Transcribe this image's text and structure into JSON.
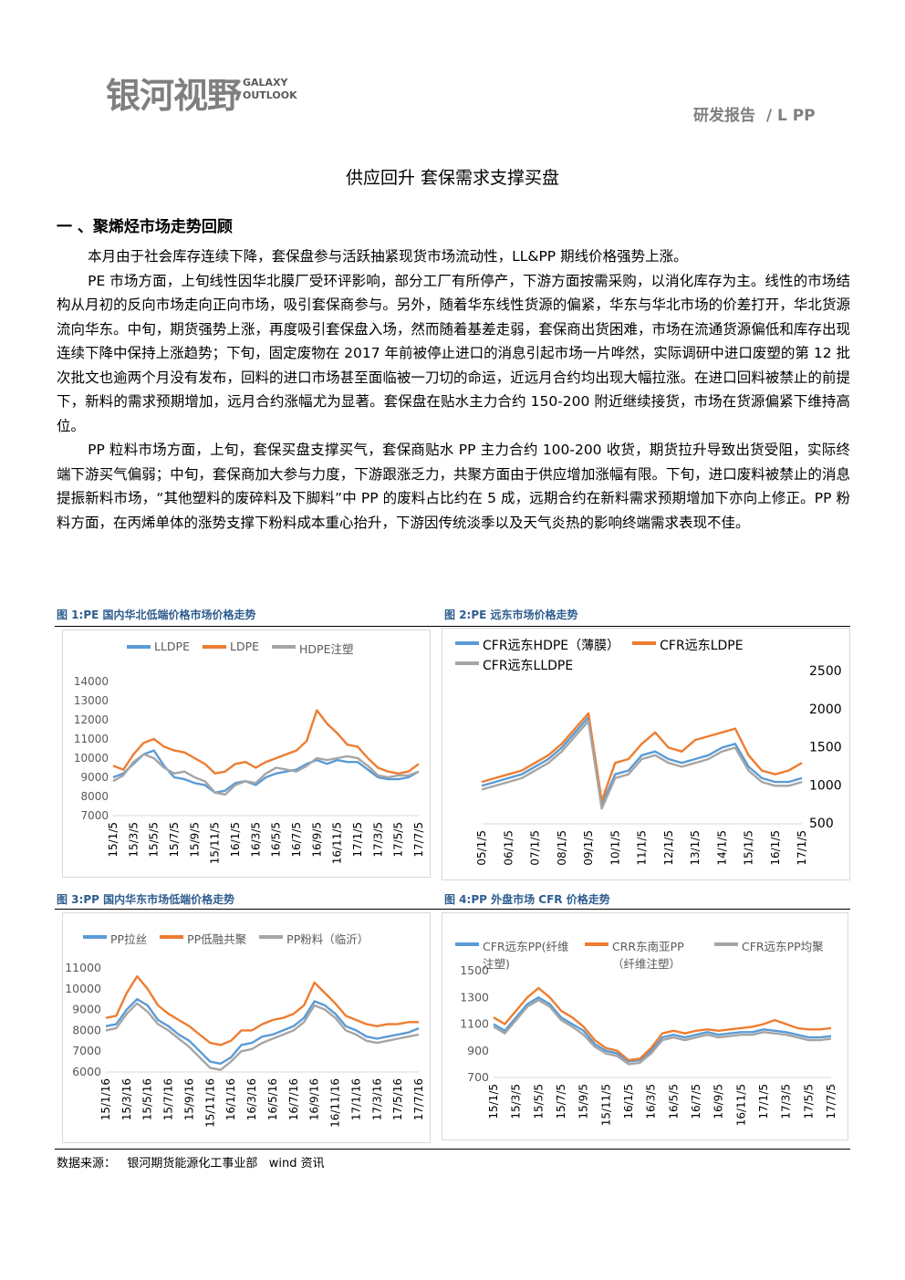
{
  "header": {
    "logo": "银河视野",
    "logo_en_1": "GALAXY",
    "logo_en_2": "OUTLOOK",
    "report": "研发报告  / L PP"
  },
  "title": "供应回升 套保需求支撑买盘",
  "section": "一 、聚烯烃市场走势回顾",
  "paragraphs": [
    "本月由于社会库存连续下降，套保盘参与活跃抽紧现货市场流动性，LL&PP 期线价格强势上涨。",
    "PE 市场方面，上旬线性因华北膜厂受环评影响，部分工厂有所停产，下游方面按需采购，以消化库存为主。线性的市场结构从月初的反向市场走向正向市场，吸引套保商参与。另外，随着华东线性货源的偏紧，华东与华北市场的价差打开，华北货源流向华东。中旬，期货强势上涨，再度吸引套保盘入场，然而随着基差走弱，套保商出货困难，市场在流通货源偏低和库存出现连续下降中保持上涨趋势；下旬，固定废物在 2017 年前被停止进口的消息引起市场一片哗然，实际调研中进口废塑的第 12 批次批文也逾两个月没有发布，回料的进口市场甚至面临被一刀切的命运，近远月合约均出现大幅拉涨。在进口回料被禁止的前提下，新料的需求预期增加，远月合约涨幅尤为显著。套保盘在贴水主力合约 150-200 附近继续接货，市场在货源偏紧下维持高位。",
    "PP 粒料市场方面，上旬，套保买盘支撑买气，套保商贴水 PP 主力合约 100-200 收货，期货拉升导致出货受阻，实际终端下游买气偏弱；中旬，套保商加大参与力度，下游跟涨乏力，共聚方面由于供应增加涨幅有限。下旬，进口废料被禁止的消息提振新料市场，“其他塑料的废碎料及下脚料”中 PP 的废料占比约在 5 成，远期合约在新料需求预期增加下亦向上修正。PP 粉料方面，在丙烯单体的涨势支撑下粉料成本重心抬升，下游因传统淡季以及天气炎热的影响终端需求表现不佳。"
  ],
  "source": "数据来源：   银河期货能源化工事业部   wind 资讯",
  "chart_data": [
    {
      "type": "line",
      "title": "图 1:PE 国内华北低端价格市场价格走势",
      "yaxis_side": "left",
      "categories": [
        "15/1/5",
        null,
        "15/3/5",
        null,
        "15/5/5",
        null,
        "15/7/5",
        null,
        "15/9/5",
        null,
        "15/11/5",
        null,
        "16/1/5",
        null,
        "16/3/5",
        null,
        "16/5/5",
        null,
        "16/7/5",
        null,
        "16/9/5",
        null,
        "16/11/5",
        null,
        "17/1/5",
        null,
        "17/3/5",
        null,
        "17/5/5",
        null,
        "17/7/5"
      ],
      "series": [
        {
          "name": "LLDPE",
          "color": "#5b9bd5",
          "values": [
            9000,
            9200,
            9700,
            10200,
            10400,
            9600,
            9000,
            8900,
            8700,
            8600,
            8200,
            8300,
            8700,
            8800,
            8600,
            9000,
            9200,
            9300,
            9400,
            9700,
            9900,
            9700,
            9900,
            9800,
            9800,
            9400,
            9000,
            8900,
            8900,
            9000,
            9300
          ]
        },
        {
          "name": "LDPE",
          "color": "#ed7d31",
          "values": [
            9600,
            9400,
            10200,
            10800,
            11000,
            10600,
            10400,
            10300,
            10000,
            9700,
            9200,
            9300,
            9700,
            9800,
            9500,
            9800,
            10000,
            10200,
            10400,
            10900,
            12500,
            11800,
            11300,
            10700,
            10600,
            10000,
            9500,
            9300,
            9200,
            9300,
            9700
          ]
        },
        {
          "name": "HDPE注塑",
          "color": "#a5a5a5",
          "values": [
            8800,
            9100,
            9800,
            10200,
            10000,
            9500,
            9200,
            9300,
            9000,
            8800,
            8200,
            8100,
            8600,
            8800,
            8700,
            9200,
            9500,
            9400,
            9300,
            9600,
            10000,
            9900,
            10000,
            10100,
            10000,
            9600,
            9100,
            9000,
            9100,
            9100,
            9300
          ]
        }
      ],
      "ylim": [
        7000,
        14000
      ],
      "yticks": [
        7000,
        8000,
        9000,
        10000,
        11000,
        12000,
        13000,
        14000
      ]
    },
    {
      "type": "line",
      "title": "图 2:PE 远东市场价格走势",
      "yaxis_side": "right",
      "categories": [
        "05/1/5",
        null,
        "06/1/5",
        null,
        "07/1/5",
        null,
        "08/1/5",
        null,
        "09/1/5",
        null,
        "10/1/5",
        null,
        "11/1/5",
        null,
        "12/1/5",
        null,
        "13/1/5",
        null,
        "14/1/5",
        null,
        "15/1/5",
        null,
        "16/1/5",
        null,
        "17/1/5"
      ],
      "series": [
        {
          "name": "CFR远东HDPE（薄膜）",
          "color": "#5b9bd5",
          "values": [
            1000,
            1050,
            1100,
            1150,
            1250,
            1350,
            1500,
            1700,
            1900,
            750,
            1150,
            1200,
            1400,
            1450,
            1350,
            1300,
            1350,
            1400,
            1500,
            1550,
            1250,
            1100,
            1050,
            1050,
            1100
          ]
        },
        {
          "name": "CFR远东LDPE",
          "color": "#ed7d31",
          "values": [
            1050,
            1100,
            1150,
            1200,
            1300,
            1400,
            1550,
            1750,
            1950,
            800,
            1300,
            1350,
            1550,
            1700,
            1500,
            1450,
            1600,
            1650,
            1700,
            1750,
            1400,
            1200,
            1150,
            1200,
            1300
          ]
        },
        {
          "name": "CFR远东LLDPE",
          "color": "#a5a5a5",
          "values": [
            950,
            1000,
            1050,
            1100,
            1200,
            1300,
            1450,
            1650,
            1850,
            700,
            1100,
            1150,
            1350,
            1400,
            1300,
            1250,
            1300,
            1350,
            1450,
            1500,
            1200,
            1050,
            1000,
            1000,
            1050
          ]
        }
      ],
      "ylim": [
        500,
        2500
      ],
      "yticks": [
        500,
        1000,
        1500,
        2000,
        2500
      ]
    },
    {
      "type": "line",
      "title": "图 3:PP 国内华东市场低端价格走势",
      "yaxis_side": "left",
      "categories": [
        "15/1/16",
        null,
        "15/3/16",
        null,
        "15/5/16",
        null,
        "15/7/16",
        null,
        "15/9/16",
        null,
        "15/11/16",
        null,
        "16/1/16",
        null,
        "16/3/16",
        null,
        "16/5/16",
        null,
        "16/7/16",
        null,
        "16/9/16",
        null,
        "16/11/16",
        null,
        "17/1/16",
        null,
        "17/3/16",
        null,
        "17/5/16",
        null,
        "17/7/16"
      ],
      "series": [
        {
          "name": "PP拉丝",
          "color": "#5b9bd5",
          "values": [
            8200,
            8300,
            9000,
            9500,
            9200,
            8500,
            8200,
            7800,
            7500,
            7000,
            6500,
            6400,
            6700,
            7300,
            7400,
            7700,
            7800,
            8000,
            8200,
            8600,
            9400,
            9200,
            8800,
            8200,
            8000,
            7700,
            7600,
            7700,
            7800,
            7900,
            8100
          ]
        },
        {
          "name": "PP低融共聚",
          "color": "#ed7d31",
          "values": [
            8600,
            8700,
            9800,
            10600,
            10000,
            9200,
            8800,
            8500,
            8200,
            7800,
            7400,
            7300,
            7500,
            8000,
            8000,
            8300,
            8500,
            8600,
            8800,
            9200,
            10300,
            9800,
            9300,
            8700,
            8500,
            8300,
            8200,
            8300,
            8300,
            8400,
            8400
          ]
        },
        {
          "name": "PP粉料（临沂）",
          "color": "#a5a5a5",
          "values": [
            8000,
            8100,
            8800,
            9300,
            8900,
            8300,
            8000,
            7600,
            7200,
            6700,
            6200,
            6100,
            6500,
            7000,
            7100,
            7400,
            7600,
            7800,
            8000,
            8400,
            9200,
            9000,
            8600,
            8000,
            7800,
            7500,
            7400,
            7500,
            7600,
            7700,
            7800
          ]
        }
      ],
      "ylim": [
        6000,
        11000
      ],
      "yticks": [
        6000,
        7000,
        8000,
        9000,
        10000,
        11000
      ]
    },
    {
      "type": "line",
      "title": "图 4:PP 外盘市场 CFR 价格走势",
      "yaxis_side": "left",
      "categories": [
        "15/1/5",
        null,
        "15/3/5",
        null,
        "15/5/5",
        null,
        "15/7/5",
        null,
        "15/9/5",
        null,
        "15/11/5",
        null,
        "16/1/5",
        null,
        "16/3/5",
        null,
        "16/5/5",
        null,
        "16/7/5",
        null,
        "16/9/5",
        null,
        "16/11/5",
        null,
        "17/1/5",
        null,
        "17/3/5",
        null,
        "17/5/5",
        null,
        "17/7/5"
      ],
      "series": [
        {
          "name": "CFR远东PP(纤维注塑)",
          "color": "#5b9bd5",
          "values": [
            1100,
            1050,
            1150,
            1250,
            1300,
            1250,
            1150,
            1100,
            1050,
            950,
            900,
            880,
            820,
            830,
            900,
            1000,
            1020,
            1000,
            1020,
            1040,
            1020,
            1030,
            1040,
            1040,
            1060,
            1050,
            1040,
            1020,
            1000,
            1000,
            1010
          ]
        },
        {
          "name": "CRR东南亚PP（纤维注塑）",
          "color": "#ed7d31",
          "values": [
            1150,
            1100,
            1200,
            1300,
            1370,
            1300,
            1200,
            1150,
            1080,
            980,
            920,
            900,
            830,
            840,
            920,
            1030,
            1050,
            1030,
            1050,
            1060,
            1050,
            1060,
            1070,
            1080,
            1100,
            1130,
            1100,
            1070,
            1060,
            1060,
            1070
          ]
        },
        {
          "name": "CFR远东PP均聚",
          "color": "#a5a5a5",
          "values": [
            1080,
            1030,
            1130,
            1230,
            1280,
            1230,
            1130,
            1080,
            1020,
            930,
            880,
            860,
            800,
            810,
            880,
            980,
            1000,
            980,
            1000,
            1020,
            1000,
            1010,
            1020,
            1020,
            1040,
            1030,
            1020,
            1000,
            980,
            980,
            990
          ]
        }
      ],
      "ylim": [
        700,
        1500
      ],
      "yticks": [
        700,
        900,
        1100,
        1300,
        1500
      ]
    }
  ]
}
